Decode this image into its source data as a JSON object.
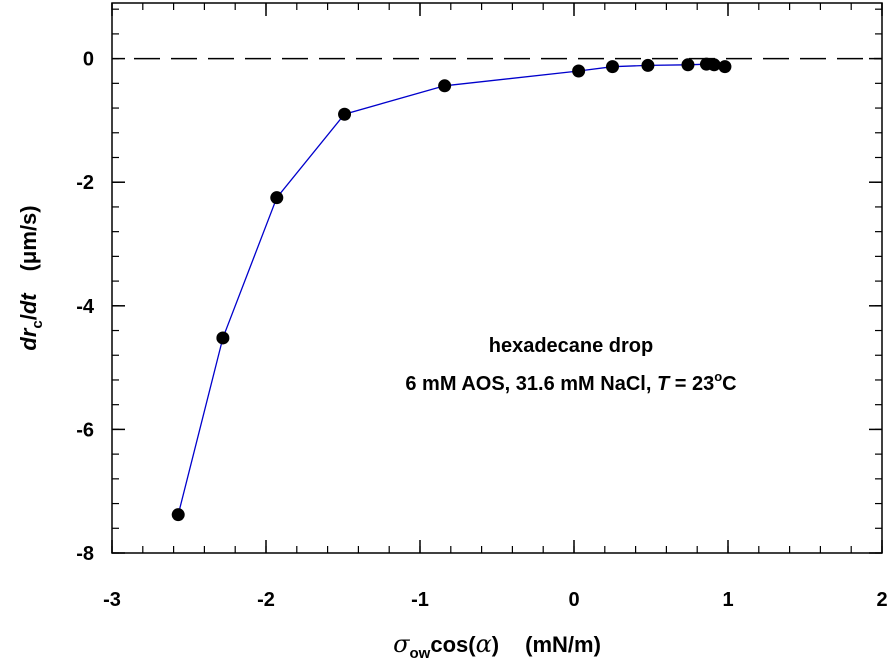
{
  "chart_data": {
    "type": "line",
    "xlim": [
      -3,
      2
    ],
    "ylim": [
      -8,
      0.9
    ],
    "x_ticks": [
      {
        "value": -3,
        "label": "-3"
      },
      {
        "value": -2,
        "label": "-2"
      },
      {
        "value": -1,
        "label": "-1"
      },
      {
        "value": 0,
        "label": "0"
      },
      {
        "value": 1,
        "label": "1"
      },
      {
        "value": 2,
        "label": "2"
      }
    ],
    "y_ticks": [
      {
        "value": 0,
        "label": "0"
      },
      {
        "value": -2,
        "label": "-2"
      },
      {
        "value": -4,
        "label": "-4"
      },
      {
        "value": -6,
        "label": "-6"
      },
      {
        "value": -8,
        "label": "-8"
      }
    ],
    "x_minor_step": 0.2,
    "y_minor_step": 0.4,
    "xlabel": {
      "symbol": "σ",
      "subscript": "ow",
      "func": "cos(",
      "arg": "α",
      "close": ")",
      "units": "(mN/m)"
    },
    "ylabel": {
      "d1": "dr",
      "subscript": "c",
      "slash": "/",
      "d2": "dt",
      "units": "(μm/s)"
    },
    "reference_line": {
      "y": 0,
      "style": "dashed",
      "color": "#000000"
    },
    "line_color": "#0000cc",
    "marker_color": "#000000",
    "series": [
      {
        "x": [
          -2.57,
          -2.28,
          -1.93,
          -1.49,
          -0.84,
          0.03,
          0.25,
          0.48,
          0.74,
          0.86,
          0.91,
          0.98
        ],
        "y": [
          -7.38,
          -4.52,
          -2.25,
          -0.9,
          -0.44,
          -0.2,
          -0.13,
          -0.11,
          -0.1,
          -0.09,
          -0.1,
          -0.13
        ]
      }
    ],
    "annotation": {
      "line1": "hexadecane drop",
      "line2_prefix": "6 mM AOS,  31.6 mM NaCl,  ",
      "T": "T",
      "eq": " = 23",
      "deg": "o",
      "unit": "C"
    },
    "grid": false
  }
}
